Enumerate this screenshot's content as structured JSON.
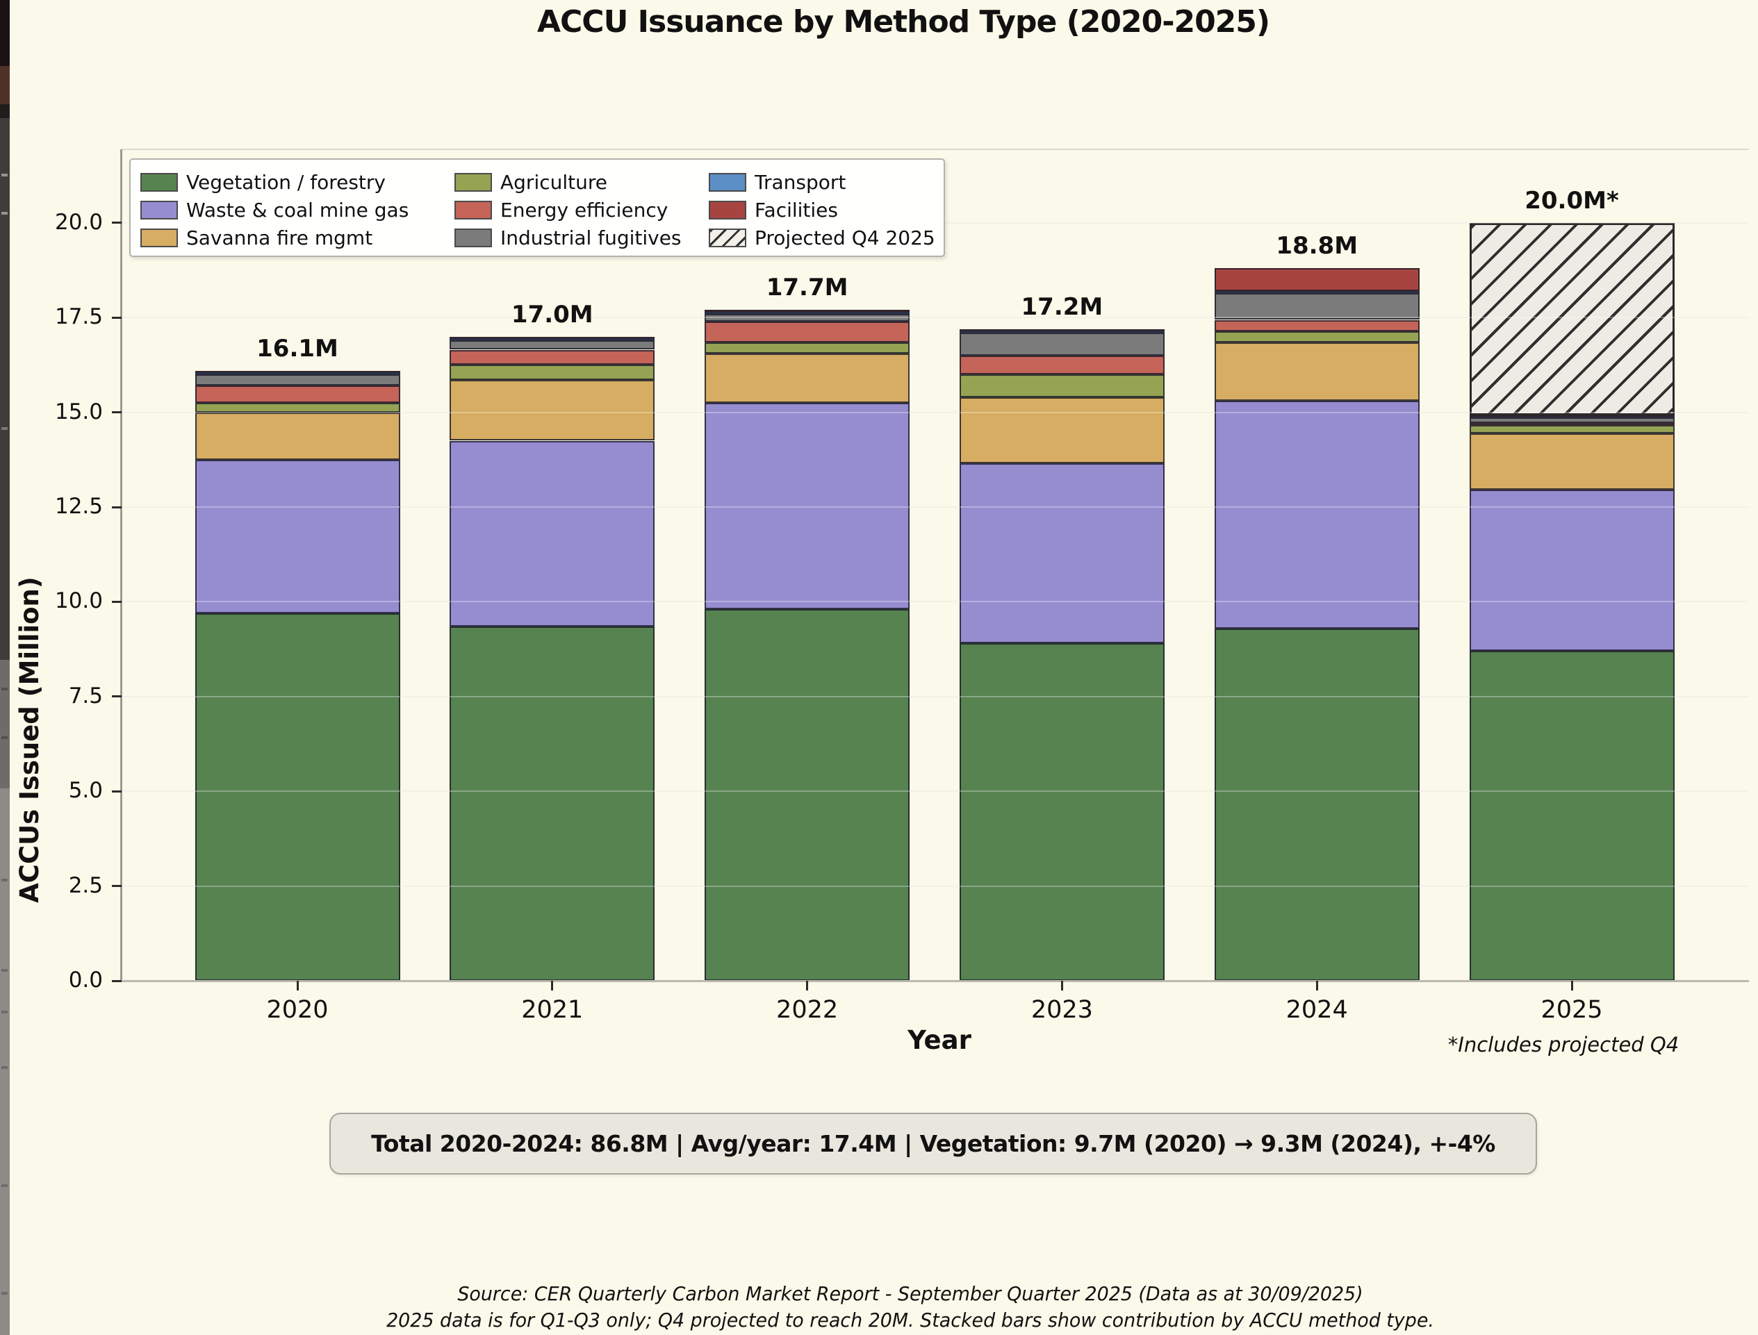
{
  "title": "ACCU Issuance by Method Type (2020-2025)",
  "chart_data": {
    "type": "bar",
    "stacked": true,
    "title": "ACCU Issuance by Method Type (2020-2025)",
    "xlabel": "Year",
    "ylabel": "ACCUs Issued (Million)",
    "categories": [
      "2020",
      "2021",
      "2022",
      "2023",
      "2024",
      "2025"
    ],
    "series": [
      {
        "name": "Vegetation / forestry",
        "color": "#578351",
        "values": [
          9.7,
          9.35,
          9.8,
          8.9,
          9.3,
          8.7
        ]
      },
      {
        "name": "Waste & coal mine gas",
        "color": "#968dd0",
        "values": [
          4.05,
          4.9,
          5.45,
          4.75,
          6.0,
          4.25
        ]
      },
      {
        "name": "Savanna fire mgmt",
        "color": "#d6ad62",
        "values": [
          1.25,
          1.6,
          1.3,
          1.75,
          1.55,
          1.5
        ]
      },
      {
        "name": "Agriculture",
        "color": "#95a353",
        "values": [
          0.25,
          0.4,
          0.3,
          0.6,
          0.28,
          0.22
        ]
      },
      {
        "name": "Energy efficiency",
        "color": "#c56459",
        "values": [
          0.45,
          0.4,
          0.55,
          0.5,
          0.31,
          0.05
        ]
      },
      {
        "name": "Industrial fugitives",
        "color": "#7b7b7b",
        "values": [
          0.3,
          0.25,
          0.2,
          0.6,
          0.7,
          0.15
        ]
      },
      {
        "name": "Transport",
        "color": "#5d8fc7",
        "values": [
          0.05,
          0.05,
          0.05,
          0.05,
          0.06,
          0.02
        ]
      },
      {
        "name": "Facilities",
        "color": "#a84440",
        "values": [
          0.05,
          0.05,
          0.05,
          0.05,
          0.6,
          0.03
        ]
      },
      {
        "name": "Projected Q4 2025",
        "color": "#edebe3",
        "hatch": true,
        "values": [
          0,
          0,
          0,
          0,
          0,
          5.08
        ]
      }
    ],
    "totals": [
      "16.1M",
      "17.0M",
      "17.7M",
      "17.2M",
      "18.8M",
      "20.0M*"
    ],
    "yticks": [
      0.0,
      2.5,
      5.0,
      7.5,
      10.0,
      12.5,
      15.0,
      17.5,
      20.0
    ],
    "ytick_labels": [
      "0.0",
      "2.5",
      "5.0",
      "7.5",
      "10.0",
      "12.5",
      "15.0",
      "17.5",
      "20.0"
    ],
    "ylim": [
      0,
      21.9
    ],
    "grid": true,
    "legend_position": "upper-left",
    "colors": {
      "background": "#fbf9e9",
      "bar_edge": "#23232c",
      "hatch_line": "#2f2f2f",
      "grid_under": "#edebdb",
      "grid_over": "rgba(255,255,255,0.30)"
    }
  },
  "annotation": "*Includes projected Q4",
  "summary": "Total 2020-2024: 86.8M  |  Avg/year: 17.4M  |  Vegetation: 9.7M (2020) → 9.3M (2024), +-4%",
  "source_line1": "Source: CER Quarterly Carbon Market Report - September Quarter 2025 (Data as at 30/09/2025)",
  "source_line2": "2025 data is for Q1-Q3 only; Q4 projected to reach 20M. Stacked bars show contribution by ACCU method type."
}
